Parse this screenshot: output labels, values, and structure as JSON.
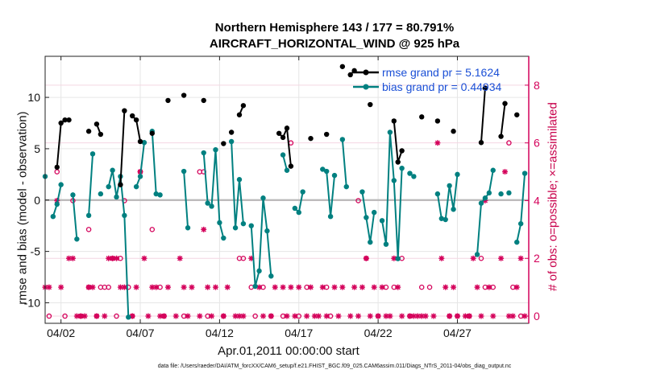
{
  "chart_data": {
    "type": "line",
    "title": "Northern Hemisphere 143 / 177 = 80.791%",
    "subtitle": "AIRCRAFT_HORIZONTAL_WIND @ 925 hPa",
    "xlabel": "Apr.01,2011 00:00:00 start",
    "ylabel": "rmse and bias (model - observation)",
    "y2label": "# of obs: o=possible; ×=assimilated",
    "footer": "data file: /Users/raeder/DAI/ATM_forcXX/CAM6_setup/f.e21.FHIST_BGC.f09_025.CAM6assim.011/Diags_NTrS_2011-04/obs_diag_output.nc",
    "xlim": [
      1.0,
      31.5
    ],
    "ylim": [
      -12,
      14
    ],
    "y2lim": [
      -0.25,
      9
    ],
    "xtick_values": [
      2,
      7,
      12,
      17,
      22,
      27
    ],
    "xticks": [
      "04/02",
      "04/07",
      "04/12",
      "04/17",
      "04/22",
      "04/27"
    ],
    "yticks": [
      -10,
      -5,
      0,
      5,
      10
    ],
    "y2ticks": [
      0,
      2,
      4,
      6,
      8
    ],
    "grid": true,
    "legend_position": "top-right",
    "colors": {
      "rmse": "#000000",
      "bias": "#008080",
      "counts": "#d4005a",
      "zero_line": "#b8b8b8"
    },
    "series": [
      {
        "name": "rmse grand pr = 5.1624",
        "points": [
          [
            1.75,
            3.2
          ],
          [
            2.0,
            7.5
          ],
          [
            2.25,
            7.8
          ],
          [
            2.5,
            7.8
          ],
          [
            3.75,
            6.7
          ],
          [
            4.25,
            7.4
          ],
          [
            4.5,
            6.4
          ],
          [
            5.75,
            1.5
          ],
          [
            6.0,
            8.7
          ],
          [
            6.5,
            8.2
          ],
          [
            6.75,
            7.8
          ],
          [
            7.0,
            5.7
          ],
          [
            7.75,
            6.5
          ],
          [
            8.75,
            9.7
          ],
          [
            9.75,
            10.2
          ],
          [
            11.0,
            9.7
          ],
          [
            12.25,
            5.5
          ],
          [
            12.75,
            6.6
          ],
          [
            13.25,
            8.3
          ],
          [
            13.5,
            9.2
          ],
          [
            15.75,
            6.5
          ],
          [
            16.0,
            6.1
          ],
          [
            16.25,
            7.0
          ],
          [
            16.5,
            3.3
          ],
          [
            17.75,
            6.0
          ],
          [
            18.75,
            6.4
          ],
          [
            19.75,
            13.0
          ],
          [
            20.25,
            12.2
          ],
          [
            20.5,
            12.6
          ],
          [
            21.5,
            9.3
          ],
          [
            23.0,
            7.7
          ],
          [
            23.25,
            3.7
          ],
          [
            23.5,
            4.8
          ],
          [
            24.75,
            8.1
          ],
          [
            25.75,
            7.7
          ],
          [
            26.75,
            6.7
          ],
          [
            28.5,
            5.6
          ],
          [
            28.75,
            10.9
          ],
          [
            29.75,
            6.2
          ],
          [
            30.0,
            9.4
          ],
          [
            30.75,
            8.3
          ]
        ]
      },
      {
        "name": "bias grand pr = 0.44934",
        "points": [
          [
            1.0,
            2.3
          ],
          [
            1.5,
            -1.6
          ],
          [
            1.75,
            -0.4
          ],
          [
            2.0,
            1.5
          ],
          [
            2.75,
            0.5
          ],
          [
            3.0,
            -3.8
          ],
          [
            3.75,
            -1.5
          ],
          [
            4.0,
            4.5
          ],
          [
            4.5,
            0.6
          ],
          [
            5.0,
            1.3
          ],
          [
            5.25,
            2.9
          ],
          [
            5.5,
            0.3
          ],
          [
            5.75,
            2.3
          ],
          [
            6.0,
            -1.5
          ],
          [
            6.25,
            -11.4
          ],
          [
            6.75,
            1.3
          ],
          [
            7.0,
            2.3
          ],
          [
            7.25,
            5.6
          ],
          [
            7.75,
            6.7
          ],
          [
            8.0,
            0.6
          ],
          [
            8.25,
            0.5
          ],
          [
            9.75,
            2.8
          ],
          [
            10.0,
            -2.7
          ],
          [
            11.0,
            4.6
          ],
          [
            11.25,
            -0.3
          ],
          [
            11.5,
            -0.6
          ],
          [
            11.75,
            4.9
          ],
          [
            12.0,
            -2.2
          ],
          [
            12.25,
            -3.7
          ],
          [
            12.75,
            5.7
          ],
          [
            13.0,
            -2.7
          ],
          [
            13.25,
            2.0
          ],
          [
            13.5,
            -2.3
          ],
          [
            14.0,
            -2.5
          ],
          [
            14.25,
            -8.4
          ],
          [
            14.5,
            -6.9
          ],
          [
            14.75,
            0.2
          ],
          [
            15.0,
            -3.0
          ],
          [
            15.25,
            -7.4
          ],
          [
            16.0,
            4.4
          ],
          [
            16.25,
            2.9
          ],
          [
            16.75,
            -0.8
          ],
          [
            17.0,
            -1.2
          ],
          [
            17.25,
            0.8
          ],
          [
            18.5,
            3.0
          ],
          [
            18.75,
            2.8
          ],
          [
            19.0,
            -1.6
          ],
          [
            19.25,
            2.4
          ],
          [
            19.75,
            5.9
          ],
          [
            20.0,
            1.3
          ],
          [
            21.0,
            0.8
          ],
          [
            21.25,
            -1.7
          ],
          [
            21.5,
            -4.1
          ],
          [
            21.75,
            -1.2
          ],
          [
            22.25,
            -2.0
          ],
          [
            22.5,
            -4.3
          ],
          [
            22.75,
            6.6
          ],
          [
            23.0,
            1.9
          ],
          [
            23.25,
            -5.7
          ],
          [
            23.5,
            3.1
          ],
          [
            24.0,
            2.6
          ],
          [
            24.25,
            2.3
          ],
          [
            25.75,
            0.6
          ],
          [
            26.0,
            -1.8
          ],
          [
            26.25,
            -1.9
          ],
          [
            26.5,
            1.4
          ],
          [
            26.75,
            -0.9
          ],
          [
            27.0,
            2.5
          ],
          [
            28.25,
            -5.3
          ],
          [
            28.5,
            -0.3
          ],
          [
            28.75,
            0.2
          ],
          [
            29.0,
            0.7
          ],
          [
            29.25,
            2.9
          ],
          [
            29.75,
            0.6
          ],
          [
            30.25,
            0.7
          ],
          [
            30.75,
            -4.1
          ],
          [
            31.0,
            -2.3
          ],
          [
            31.25,
            2.6
          ]
        ]
      },
      {
        "name": "assimilated count",
        "marker": "asterisk",
        "points": [
          [
            1.0,
            1
          ],
          [
            1.25,
            1
          ],
          [
            1.75,
            4
          ],
          [
            2.0,
            1
          ],
          [
            2.5,
            2
          ],
          [
            2.75,
            2
          ],
          [
            3.0,
            0
          ],
          [
            3.25,
            0
          ],
          [
            3.5,
            0
          ],
          [
            3.75,
            1
          ],
          [
            4.0,
            1
          ],
          [
            4.25,
            0
          ],
          [
            4.75,
            0
          ],
          [
            5.0,
            2
          ],
          [
            5.25,
            2
          ],
          [
            5.5,
            2
          ],
          [
            5.75,
            1
          ],
          [
            6.0,
            1
          ],
          [
            6.5,
            0
          ],
          [
            6.75,
            1
          ],
          [
            7.0,
            5
          ],
          [
            7.25,
            2
          ],
          [
            7.5,
            0
          ],
          [
            7.75,
            1
          ],
          [
            8.0,
            1
          ],
          [
            8.25,
            0
          ],
          [
            8.5,
            0
          ],
          [
            8.75,
            1
          ],
          [
            9.25,
            0
          ],
          [
            9.5,
            2
          ],
          [
            9.75,
            1
          ],
          [
            10.0,
            0
          ],
          [
            10.25,
            1
          ],
          [
            10.75,
            0
          ],
          [
            11.0,
            3
          ],
          [
            11.25,
            1
          ],
          [
            11.5,
            0
          ],
          [
            11.75,
            1
          ],
          [
            12.25,
            0
          ],
          [
            12.5,
            1
          ],
          [
            13.0,
            0
          ],
          [
            13.25,
            0
          ],
          [
            13.5,
            0
          ],
          [
            14.0,
            2
          ],
          [
            14.5,
            1
          ],
          [
            14.75,
            0
          ],
          [
            15.25,
            0
          ],
          [
            15.5,
            1
          ],
          [
            16.0,
            1
          ],
          [
            16.25,
            0
          ],
          [
            16.5,
            1
          ],
          [
            16.75,
            0
          ],
          [
            17.0,
            1
          ],
          [
            17.5,
            0
          ],
          [
            17.75,
            1
          ],
          [
            18.0,
            0
          ],
          [
            18.25,
            0
          ],
          [
            18.5,
            1
          ],
          [
            18.75,
            0
          ],
          [
            19.25,
            1
          ],
          [
            19.5,
            0
          ],
          [
            19.75,
            1
          ],
          [
            20.25,
            0
          ],
          [
            20.5,
            1
          ],
          [
            20.75,
            0
          ],
          [
            21.0,
            1
          ],
          [
            21.25,
            2
          ],
          [
            21.5,
            0
          ],
          [
            21.75,
            1
          ],
          [
            22.0,
            0
          ],
          [
            22.25,
            1
          ],
          [
            22.5,
            0
          ],
          [
            22.75,
            0
          ],
          [
            23.0,
            2
          ],
          [
            23.25,
            1
          ],
          [
            23.5,
            0
          ],
          [
            24.0,
            0
          ],
          [
            24.25,
            0
          ],
          [
            24.5,
            0
          ],
          [
            24.75,
            0
          ],
          [
            25.0,
            0
          ],
          [
            25.5,
            0
          ],
          [
            25.75,
            6
          ],
          [
            26.0,
            2
          ],
          [
            26.25,
            1
          ],
          [
            26.5,
            0
          ],
          [
            26.75,
            1
          ],
          [
            27.0,
            0
          ],
          [
            27.5,
            0
          ],
          [
            27.75,
            0
          ],
          [
            28.0,
            2
          ],
          [
            28.25,
            1
          ],
          [
            28.5,
            0
          ],
          [
            28.75,
            4
          ],
          [
            29.0,
            1
          ],
          [
            29.25,
            0
          ],
          [
            29.75,
            2
          ],
          [
            30.0,
            5
          ],
          [
            30.25,
            0
          ],
          [
            30.5,
            0
          ],
          [
            30.75,
            1
          ],
          [
            31.0,
            2
          ],
          [
            31.25,
            0
          ]
        ]
      },
      {
        "name": "possible count",
        "marker": "circle",
        "points": [
          [
            1.25,
            0
          ],
          [
            1.75,
            5
          ],
          [
            2.25,
            0
          ],
          [
            2.75,
            4
          ],
          [
            3.25,
            0
          ],
          [
            3.75,
            3
          ],
          [
            3.75,
            1
          ],
          [
            4.25,
            0
          ],
          [
            4.5,
            1
          ],
          [
            4.75,
            1
          ],
          [
            5.0,
            1
          ],
          [
            5.25,
            2
          ],
          [
            5.5,
            0
          ],
          [
            5.75,
            2
          ],
          [
            6.0,
            4
          ],
          [
            6.25,
            1
          ],
          [
            6.5,
            0
          ],
          [
            7.0,
            5
          ],
          [
            7.75,
            3
          ],
          [
            8.25,
            1
          ],
          [
            8.5,
            0
          ],
          [
            9.75,
            0
          ],
          [
            10.75,
            5
          ],
          [
            11.0,
            5
          ],
          [
            11.25,
            0
          ],
          [
            12.25,
            0
          ],
          [
            13.25,
            2
          ],
          [
            13.5,
            2
          ],
          [
            14.0,
            1
          ],
          [
            14.25,
            0
          ],
          [
            14.75,
            1
          ],
          [
            15.25,
            0
          ],
          [
            16.0,
            0
          ],
          [
            16.5,
            6
          ],
          [
            17.0,
            0
          ],
          [
            17.5,
            1
          ],
          [
            18.75,
            1
          ],
          [
            19.0,
            0
          ],
          [
            20.75,
            4
          ],
          [
            21.25,
            2
          ],
          [
            22.0,
            0
          ],
          [
            22.5,
            1
          ],
          [
            23.0,
            1
          ],
          [
            23.5,
            2
          ],
          [
            24.0,
            0
          ],
          [
            24.75,
            1
          ],
          [
            25.25,
            1
          ],
          [
            26.5,
            0
          ],
          [
            27.0,
            0
          ],
          [
            27.75,
            0
          ],
          [
            28.5,
            2
          ],
          [
            28.75,
            1
          ],
          [
            29.25,
            1
          ],
          [
            30.25,
            6
          ],
          [
            30.5,
            1
          ],
          [
            31.0,
            0
          ]
        ]
      }
    ]
  }
}
